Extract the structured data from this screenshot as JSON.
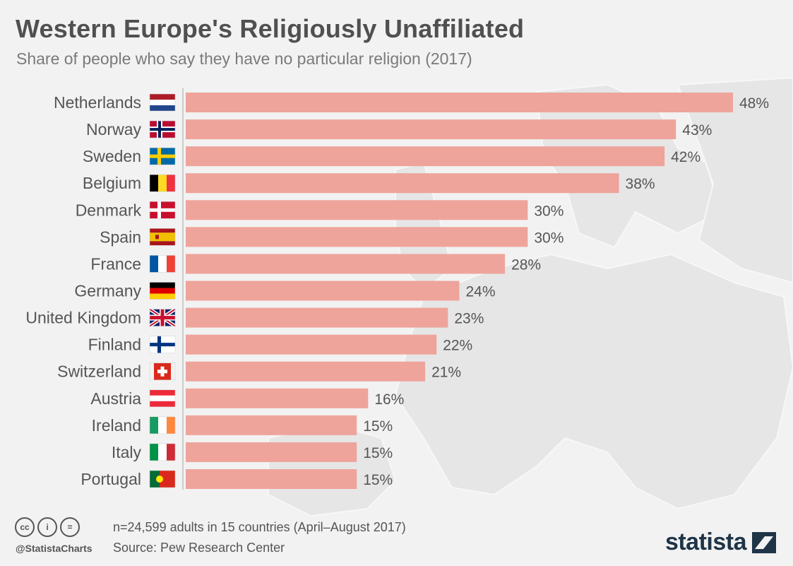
{
  "header": {
    "title": "Western Europe's Religiously Unaffiliated",
    "subtitle": "Share of people who say they have no particular religion (2017)"
  },
  "footer": {
    "note": "n=24,599 adults in 15 countries (April–August 2017)",
    "source": "Source: Pew Research Center",
    "handle": "@StatistaCharts",
    "brand": "statista",
    "license_icons": [
      "cc-icon",
      "attribution-icon",
      "no-derivatives-icon"
    ],
    "license_glyphs": [
      "cc",
      "i",
      "="
    ]
  },
  "colors": {
    "bar": "#eea49b",
    "value_text": "#555555",
    "label_text": "#555555",
    "axis": "#cccccc",
    "brand": "#1f3447"
  },
  "chart_data": {
    "type": "bar",
    "orientation": "horizontal",
    "title": "Western Europe's Religiously Unaffiliated",
    "subtitle": "Share of people who say they have no particular religion (2017)",
    "xlabel": "",
    "ylabel": "",
    "value_suffix": "%",
    "xlim": [
      0,
      48
    ],
    "grid": false,
    "legend": "none",
    "categories": [
      "Netherlands",
      "Norway",
      "Sweden",
      "Belgium",
      "Denmark",
      "Spain",
      "France",
      "Germany",
      "United Kingdom",
      "Finland",
      "Switzerland",
      "Austria",
      "Ireland",
      "Italy",
      "Portugal"
    ],
    "flags": [
      "netherlands-flag-icon",
      "norway-flag-icon",
      "sweden-flag-icon",
      "belgium-flag-icon",
      "denmark-flag-icon",
      "spain-flag-icon",
      "france-flag-icon",
      "germany-flag-icon",
      "united-kingdom-flag-icon",
      "finland-flag-icon",
      "switzerland-flag-icon",
      "austria-flag-icon",
      "ireland-flag-icon",
      "italy-flag-icon",
      "portugal-flag-icon"
    ],
    "values": [
      48,
      43,
      42,
      38,
      30,
      30,
      28,
      24,
      23,
      22,
      21,
      16,
      15,
      15,
      15
    ],
    "value_labels": [
      "48%",
      "43%",
      "42%",
      "38%",
      "30%",
      "30%",
      "28%",
      "24%",
      "23%",
      "22%",
      "21%",
      "16%",
      "15%",
      "15%",
      "15%"
    ]
  }
}
